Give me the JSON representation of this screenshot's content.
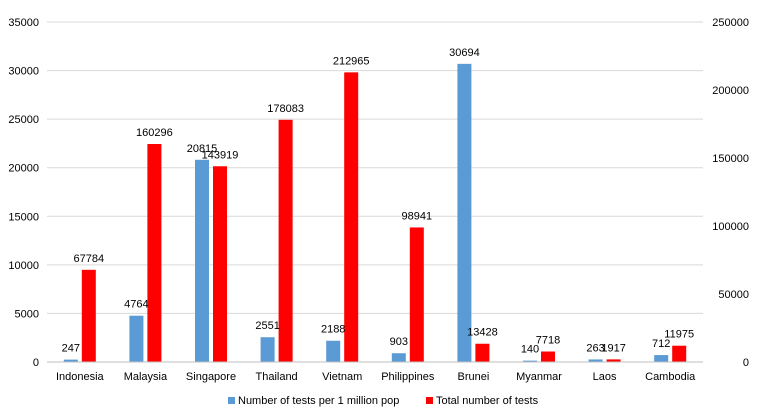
{
  "chart_data": {
    "type": "bar",
    "categories": [
      "Indonesia",
      "Malaysia",
      "Singapore",
      "Thailand",
      "Vietnam",
      "Philippines",
      "Brunei",
      "Myanmar",
      "Laos",
      "Cambodia"
    ],
    "series": [
      {
        "name": "Number of tests per 1 million pop",
        "axis": "left",
        "color": "#5B9BD5",
        "values": [
          247,
          4764,
          20815,
          2551,
          2188,
          903,
          30694,
          140,
          263,
          712
        ]
      },
      {
        "name": "Total number of tests",
        "axis": "right",
        "color": "#FF0000",
        "values": [
          67784,
          160296,
          143919,
          178083,
          212965,
          98941,
          13428,
          7718,
          1917,
          11975
        ]
      }
    ],
    "y_left": {
      "min": 0,
      "max": 35000,
      "step": 5000
    },
    "y_right": {
      "min": 0,
      "max": 250000,
      "step": 50000
    },
    "grid": true,
    "legend_position": "bottom",
    "data_labels": true
  }
}
